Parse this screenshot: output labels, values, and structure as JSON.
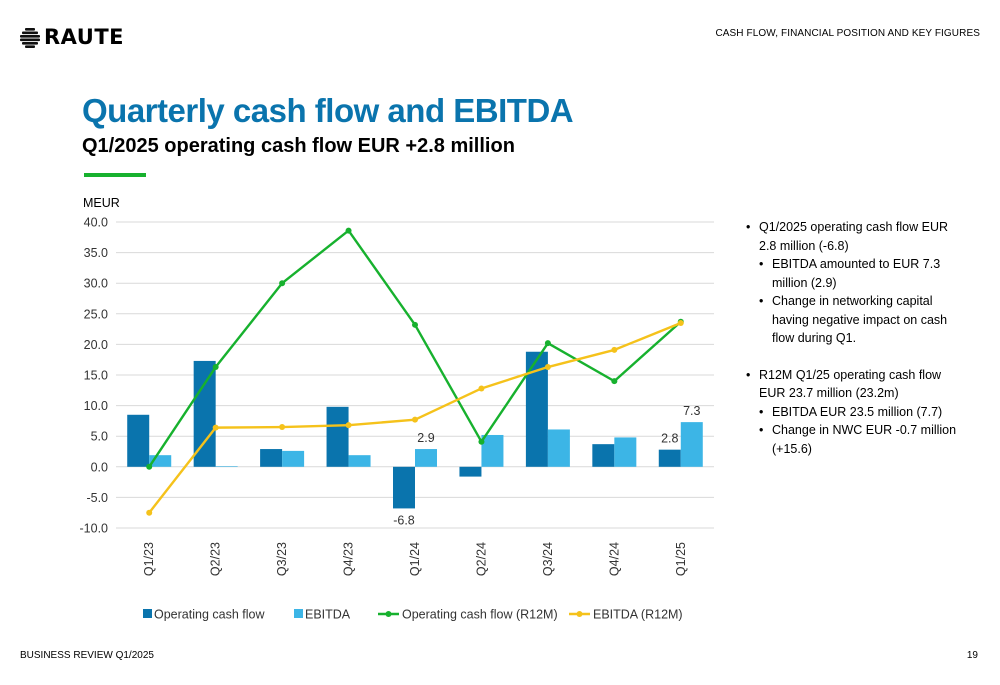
{
  "header": {
    "logo_text": "RAUTE",
    "section_label": "CASH FLOW, FINANCIAL POSITION AND KEY FIGURES",
    "title": "Quarterly cash flow and EBITDA",
    "subtitle": "Q1/2025 operating cash flow EUR +2.8 million"
  },
  "colors": {
    "title": "#0a74ad",
    "accent": "#17b12e",
    "operating_cash_flow": "#0a74ad",
    "ebitda": "#3cb5e6",
    "operating_cash_flow_r12m": "#17b12e",
    "ebitda_r12m": "#f5c21b"
  },
  "chart_data": {
    "type": "bar",
    "unit_label": "MEUR",
    "categories": [
      "Q1/23",
      "Q2/23",
      "Q3/23",
      "Q4/23",
      "Q1/24",
      "Q2/24",
      "Q3/24",
      "Q4/24",
      "Q1/25"
    ],
    "ylim": [
      -10,
      40
    ],
    "yticks": [
      "40.0",
      "35.0",
      "30.0",
      "25.0",
      "20.0",
      "15.0",
      "10.0",
      "5.0",
      "0.0",
      "-5.0",
      "-10.0"
    ],
    "grid": true,
    "legend_position": "bottom",
    "series": [
      {
        "name": "Operating cash flow",
        "kind": "bar",
        "values": [
          8.5,
          17.3,
          2.9,
          9.8,
          -6.8,
          -1.6,
          18.8,
          3.7,
          2.8
        ]
      },
      {
        "name": "EBITDA",
        "kind": "bar",
        "values": [
          1.9,
          0.1,
          2.6,
          1.9,
          2.9,
          5.2,
          6.1,
          4.8,
          7.3
        ]
      },
      {
        "name": "Operating cash flow (R12M)",
        "kind": "line",
        "values": [
          0.0,
          16.3,
          30.0,
          38.6,
          23.2,
          4.1,
          20.2,
          14.0,
          23.7
        ]
      },
      {
        "name": "EBITDA (R12M)",
        "kind": "line",
        "values": [
          -7.5,
          6.4,
          6.5,
          6.8,
          7.7,
          12.8,
          16.3,
          19.1,
          23.5
        ]
      }
    ],
    "data_labels": [
      {
        "series": 0,
        "index": 4,
        "text": "-6.8"
      },
      {
        "series": 1,
        "index": 4,
        "text": "2.9"
      },
      {
        "series": 0,
        "index": 8,
        "text": "2.8"
      },
      {
        "series": 1,
        "index": 8,
        "text": "7.3"
      }
    ]
  },
  "bullets": [
    {
      "level": 1,
      "text": "Q1/2025 operating cash flow EUR 2.8 million (-6.8)"
    },
    {
      "level": 2,
      "text": "EBITDA amounted to EUR 7.3 million (2.9)"
    },
    {
      "level": 2,
      "text": "Change in networking capital having negative impact on cash flow during Q1."
    },
    {
      "level": 1,
      "text": "R12M Q1/25 operating cash flow EUR 23.7 million (23.2m)"
    },
    {
      "level": 2,
      "text": "EBITDA EUR 23.5 million (7.7)"
    },
    {
      "level": 2,
      "text": "Change in NWC EUR -0.7 million (+15.6)"
    }
  ],
  "footer": {
    "left": "BUSINESS REVIEW Q1/2025",
    "page_number": "19"
  }
}
